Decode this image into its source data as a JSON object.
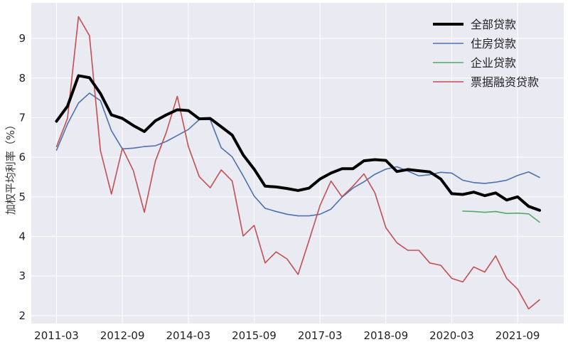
{
  "chart_data": {
    "type": "line",
    "title": "",
    "xlabel": "",
    "ylabel": "加权平均利率（%）",
    "ylim": [
      1.8,
      9.9
    ],
    "yticks": [
      2,
      3,
      4,
      5,
      6,
      7,
      8,
      9
    ],
    "xtick_labels": [
      "2011-03",
      "2012-09",
      "2014-03",
      "2015-09",
      "2017-03",
      "2018-09",
      "2020-03",
      "2021-09"
    ],
    "xtick_index": [
      0,
      6,
      12,
      18,
      24,
      30,
      36,
      42
    ],
    "x_index_range": [
      -2.3,
      46.2
    ],
    "grid": true,
    "legend_position": "top-right",
    "series": [
      {
        "name": "全部贷款",
        "color": "#000000",
        "line_weight": "bold",
        "start_index": 0,
        "values": [
          6.91,
          7.29,
          8.06,
          8.01,
          7.61,
          7.07,
          6.98,
          6.8,
          6.65,
          6.92,
          7.07,
          7.2,
          7.18,
          6.97,
          6.98,
          6.77,
          6.56,
          6.06,
          5.7,
          5.27,
          5.25,
          5.21,
          5.16,
          5.22,
          5.45,
          5.6,
          5.71,
          5.71,
          5.91,
          5.94,
          5.92,
          5.64,
          5.69,
          5.66,
          5.63,
          5.45,
          5.08,
          5.06,
          5.12,
          5.03,
          5.1,
          4.92,
          5.0,
          4.76,
          4.66
        ]
      },
      {
        "name": "住房贷款",
        "color": "#4c72b0",
        "line_weight": "normal",
        "start_index": 0,
        "values": [
          6.18,
          6.84,
          7.37,
          7.62,
          7.43,
          6.67,
          6.21,
          6.23,
          6.27,
          6.29,
          6.4,
          6.55,
          6.7,
          6.95,
          6.95,
          6.24,
          6.01,
          5.53,
          5.02,
          4.71,
          4.63,
          4.56,
          4.52,
          4.52,
          4.56,
          4.69,
          4.99,
          5.22,
          5.38,
          5.57,
          5.7,
          5.76,
          5.65,
          5.53,
          5.56,
          5.62,
          5.6,
          5.42,
          5.36,
          5.34,
          5.37,
          5.42,
          5.54,
          5.63,
          5.49
        ]
      },
      {
        "name": "企业贷款",
        "color": "#55a868",
        "line_weight": "normal",
        "start_index": 37,
        "values": [
          4.64,
          4.63,
          4.61,
          4.63,
          4.58,
          4.59,
          4.57,
          4.36
        ]
      },
      {
        "name": "票据融资贷款",
        "color": "#c44e52",
        "line_weight": "normal",
        "start_index": 0,
        "values": [
          6.27,
          6.98,
          9.55,
          9.07,
          6.17,
          5.07,
          6.23,
          5.66,
          4.61,
          5.9,
          6.63,
          7.54,
          6.28,
          5.51,
          5.23,
          5.68,
          5.4,
          4.01,
          4.28,
          3.33,
          3.61,
          3.43,
          3.04,
          3.9,
          4.78,
          5.4,
          5.0,
          5.27,
          5.58,
          5.1,
          4.22,
          3.84,
          3.65,
          3.65,
          3.33,
          3.27,
          2.94,
          2.85,
          3.23,
          3.1,
          3.51,
          2.94,
          2.67,
          2.17,
          2.4
        ]
      }
    ]
  }
}
